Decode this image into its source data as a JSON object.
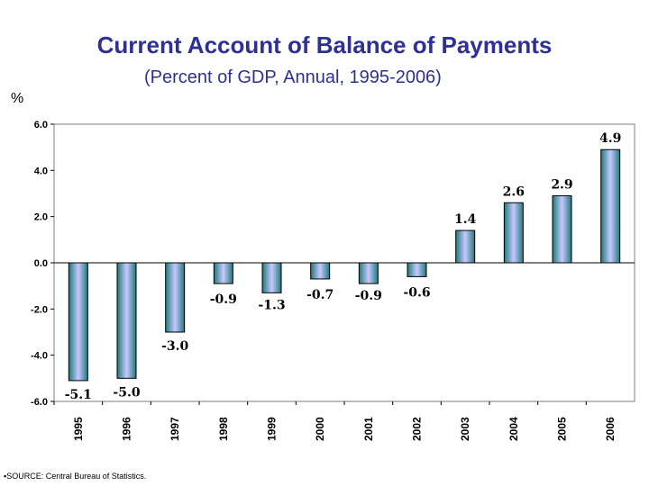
{
  "chart_data": {
    "type": "bar",
    "title": "Current Account of Balance of Payments",
    "subtitle": "(Percent of GDP, Annual, 1995-2006)",
    "ylabel": "%",
    "categories": [
      "1995",
      "1996",
      "1997",
      "1998",
      "1999",
      "2000",
      "2001",
      "2002",
      "2003",
      "2004",
      "2005",
      "2006"
    ],
    "values": [
      -5.1,
      -5.0,
      -3.0,
      -0.9,
      -1.3,
      -0.7,
      -0.9,
      -0.6,
      1.4,
      2.6,
      2.9,
      4.9
    ],
    "data_labels": [
      "-5.1",
      "-5.0",
      "-3.0",
      "-0.9",
      "-1.3",
      "-0.7",
      "-0.9",
      "-0.6",
      "1.4",
      "2.6",
      "2.9",
      "4.9"
    ],
    "y_ticks": [
      "6.0",
      "4.0",
      "2.0",
      "0.0",
      "-2.0",
      "-4.0",
      "-6.0"
    ],
    "y_tick_values": [
      6,
      4,
      2,
      0,
      -2,
      -4,
      -6
    ],
    "ylim": [
      -6,
      6
    ],
    "grid": false,
    "legend": "none",
    "colors": {
      "bar_edge": "#1f7a7a",
      "bar_center": "#c8c8ff",
      "title": "#2e3192"
    }
  },
  "source": "▪SOURCE: Central Bureau of Statistics."
}
